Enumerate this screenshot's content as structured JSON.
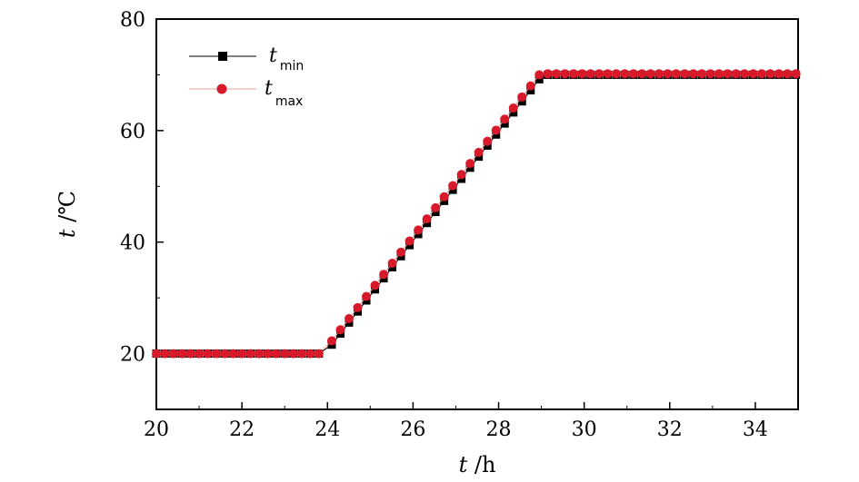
{
  "chart_data": {
    "type": "scatter",
    "xlabel_var": "t",
    "xlabel_unit": " /h",
    "ylabel_var": "t",
    "ylabel_unit": " /℃",
    "xlim": [
      20,
      35
    ],
    "ylim": [
      10,
      80
    ],
    "xticks": [
      20,
      22,
      24,
      26,
      28,
      30,
      32,
      34
    ],
    "yticks": [
      20,
      40,
      60,
      80
    ],
    "grid": false,
    "legend_position": "top-left",
    "series": [
      {
        "name_var": "t",
        "name_sub": "min",
        "color": "#000000",
        "marker": "square",
        "profile": {
          "hold_start": [
            20,
            20
          ],
          "ramp_start": [
            24.1,
            21.6
          ],
          "ramp_end": [
            28.95,
            69.2
          ],
          "hold_end": [
            35,
            70
          ],
          "step": 0.2,
          "ramp_step": 0.2
        }
      },
      {
        "name_var": "t",
        "name_sub": "max",
        "color": "#d8192a",
        "marker": "circle",
        "profile": {
          "hold_start": [
            20,
            20
          ],
          "ramp_start": [
            24.1,
            22.3
          ],
          "ramp_end": [
            28.95,
            70
          ],
          "hold_end": [
            35,
            70.2
          ],
          "step": 0.2,
          "ramp_step": 0.2
        }
      }
    ]
  }
}
